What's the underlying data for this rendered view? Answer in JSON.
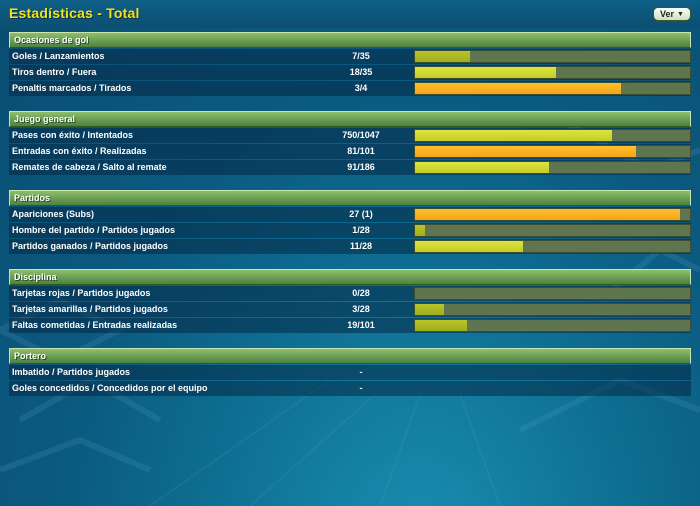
{
  "title": "Estadísticas - Total",
  "ver_label": "Ver",
  "colors": {
    "orange": "#f5a81a",
    "yellow": "#d6dd36",
    "olive": "#aab823",
    "bar_empty": "#5f7550"
  },
  "sections": [
    {
      "heading": "Ocasiones de gol",
      "rows": [
        {
          "label": "Goles / Lanzamientos",
          "value": "7/35",
          "fraction": 0.2,
          "color": "olive"
        },
        {
          "label": "Tiros dentro / Fuera",
          "value": "18/35",
          "fraction": 0.514,
          "color": "yellow"
        },
        {
          "label": "Penaltis marcados / Tirados",
          "value": "3/4",
          "fraction": 0.75,
          "color": "orange"
        }
      ]
    },
    {
      "heading": "Juego general",
      "rows": [
        {
          "label": "Pases con éxito / Intentados",
          "value": "750/1047",
          "fraction": 0.716,
          "color": "yellow"
        },
        {
          "label": "Entradas con éxito / Realizadas",
          "value": "81/101",
          "fraction": 0.802,
          "color": "orange"
        },
        {
          "label": "Remates de cabeza / Salto al remate",
          "value": "91/186",
          "fraction": 0.489,
          "color": "yellow"
        }
      ]
    },
    {
      "heading": "Partidos",
      "rows": [
        {
          "label": "Apariciones (Subs)",
          "value": "27 (1)",
          "fraction": 0.964,
          "color": "orange"
        },
        {
          "label": "Hombre del partido / Partidos jugados",
          "value": "1/28",
          "fraction": 0.036,
          "color": "olive"
        },
        {
          "label": "Partidos ganados / Partidos jugados",
          "value": "11/28",
          "fraction": 0.393,
          "color": "yellow"
        }
      ]
    },
    {
      "heading": "Disciplina",
      "rows": [
        {
          "label": "Tarjetas rojas / Partidos jugados",
          "value": "0/28",
          "fraction": 0,
          "color": "olive"
        },
        {
          "label": "Tarjetas amarillas / Partidos jugados",
          "value": "3/28",
          "fraction": 0.107,
          "color": "olive"
        },
        {
          "label": "Faltas cometidas / Entradas realizadas",
          "value": "19/101",
          "fraction": 0.188,
          "color": "olive"
        }
      ]
    },
    {
      "heading": "Portero",
      "rows": [
        {
          "label": "Imbatido / Partidos jugados",
          "value": "-",
          "fraction": null,
          "color": ""
        },
        {
          "label": "Goles concedidos / Concedidos por el equipo",
          "value": "-",
          "fraction": null,
          "color": ""
        }
      ]
    }
  ]
}
